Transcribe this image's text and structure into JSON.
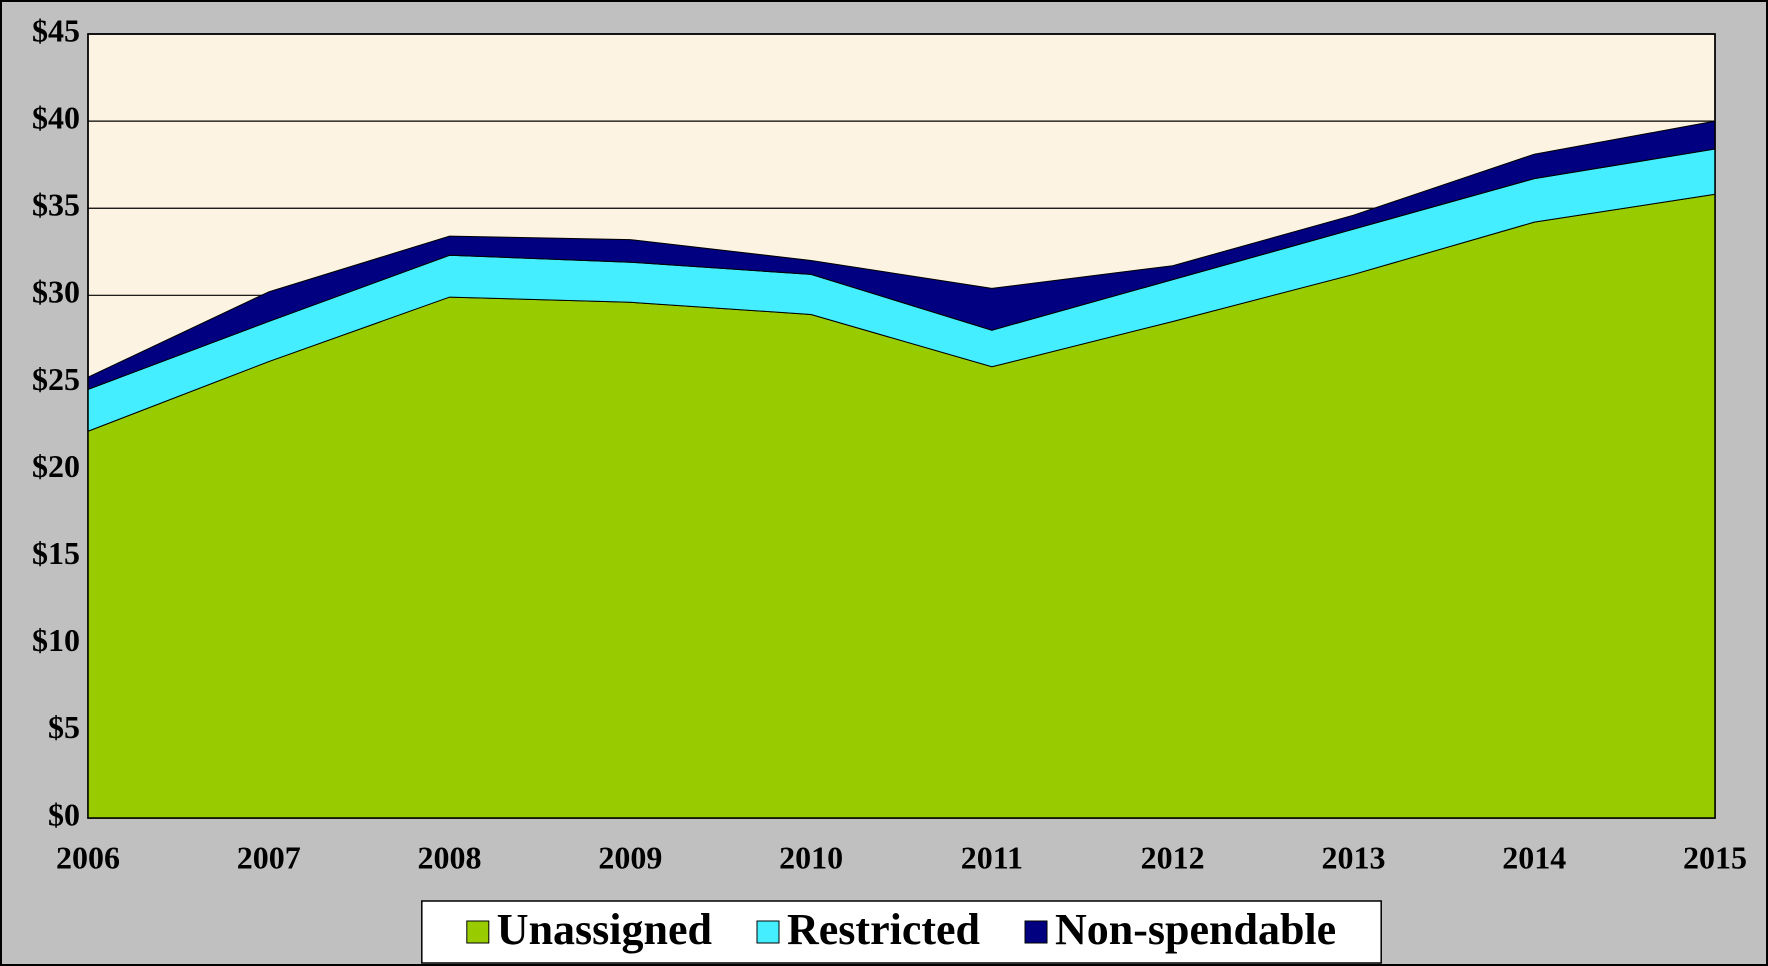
{
  "chart_data": {
    "type": "stacked-area",
    "categories": [
      "2006",
      "2007",
      "2008",
      "2009",
      "2010",
      "2011",
      "2012",
      "2013",
      "2014",
      "2015"
    ],
    "series": [
      {
        "name": "Unassigned",
        "color": "#99cc00",
        "values": [
          22.2,
          26.2,
          29.9,
          29.6,
          28.9,
          25.9,
          28.5,
          31.2,
          34.2,
          35.8
        ]
      },
      {
        "name": "Restricted",
        "color": "#44eeff",
        "values": [
          2.4,
          2.3,
          2.4,
          2.3,
          2.3,
          2.1,
          2.4,
          2.6,
          2.5,
          2.6
        ]
      },
      {
        "name": "Non-spendable",
        "color": "#000080",
        "values": [
          0.7,
          1.7,
          1.1,
          1.3,
          0.8,
          2.4,
          0.8,
          0.8,
          1.4,
          1.6
        ]
      }
    ],
    "ylim": [
      0,
      45
    ],
    "yticks": [
      {
        "value": 0,
        "label": "$0"
      },
      {
        "value": 5,
        "label": "$5"
      },
      {
        "value": 10,
        "label": "$10"
      },
      {
        "value": 15,
        "label": "$15"
      },
      {
        "value": 20,
        "label": "$20"
      },
      {
        "value": 25,
        "label": "$25"
      },
      {
        "value": 30,
        "label": "$30"
      },
      {
        "value": 35,
        "label": "$35"
      },
      {
        "value": 40,
        "label": "$40"
      },
      {
        "value": 45,
        "label": "$45"
      }
    ],
    "grid": true,
    "legend": "bottom"
  }
}
